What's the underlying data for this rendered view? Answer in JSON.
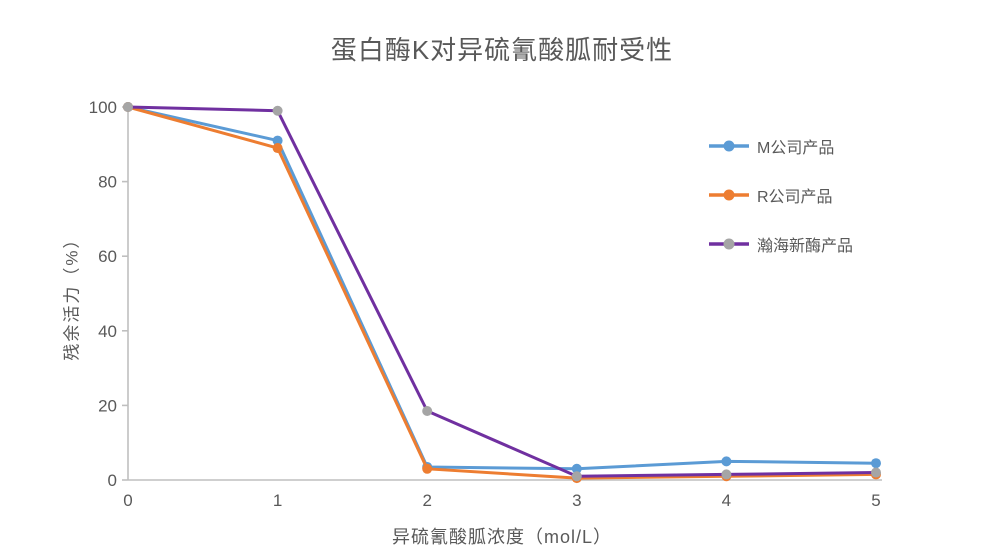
{
  "chart_data": {
    "type": "line",
    "title": "蛋白酶K对异硫氰酸胍耐受性",
    "xlabel": "异硫氰酸胍浓度（mol/L）",
    "ylabel": "残余活力（%）",
    "x": [
      0,
      1,
      2,
      3,
      4,
      5
    ],
    "xlim": [
      0,
      5
    ],
    "ylim": [
      0,
      100
    ],
    "xticks": [
      "0",
      "1",
      "2",
      "3",
      "4",
      "5"
    ],
    "yticks": [
      "0",
      "20",
      "40",
      "60",
      "80",
      "100"
    ],
    "grid": false,
    "legend_position": "right",
    "axis_color": "#BFBFBF",
    "text_color": "#595959",
    "series": [
      {
        "name": "M公司产品",
        "color": "#5B9BD5",
        "marker_color": "#5B9BD5",
        "values": [
          100,
          91,
          3.5,
          3,
          5,
          4.5
        ]
      },
      {
        "name": "R公司产品",
        "color": "#ED7D31",
        "marker_color": "#ED7D31",
        "values": [
          100,
          89,
          3,
          0.5,
          1,
          1.5
        ]
      },
      {
        "name": "瀚海新酶产品",
        "color": "#7030A0",
        "marker_color": "#A5A5A5",
        "values": [
          100,
          99,
          18.5,
          1,
          1.5,
          2
        ]
      }
    ]
  }
}
